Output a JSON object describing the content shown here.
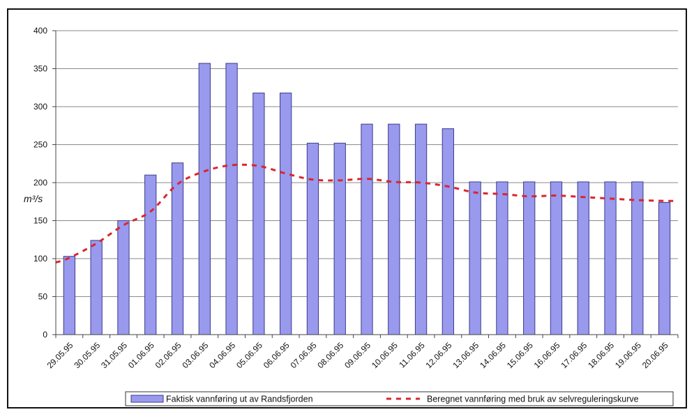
{
  "chart_data": {
    "type": "bar",
    "categories": [
      "29.05.95",
      "30.05.95",
      "31.05.95",
      "01.06.95",
      "02.06.95",
      "03.06.95",
      "04.06.95",
      "05.06.95",
      "06.06.95",
      "07.06.95",
      "08.06.95",
      "09.06.95",
      "10.06.95",
      "11.06.95",
      "12.06.95",
      "13.06.95",
      "14.06.95",
      "15.06.95",
      "16.06.95",
      "17.06.95",
      "18.06.95",
      "19.06.95",
      "20.06.95"
    ],
    "series": [
      {
        "name": "Faktisk vannføring ut av Randsfjorden",
        "type": "bar",
        "color": "#9999ee",
        "values": [
          103,
          124,
          150,
          210,
          226,
          357,
          357,
          318,
          318,
          252,
          252,
          277,
          277,
          277,
          271,
          201,
          201,
          201,
          201,
          201,
          201,
          201,
          174
        ]
      },
      {
        "name": "Beregnet vannføring med bruk av selvreguleringskurve",
        "type": "line",
        "style": "dashed",
        "color": "#d9262e",
        "values": [
          101,
          120,
          144,
          162,
          198,
          215,
          223,
          222,
          212,
          204,
          203,
          205,
          201,
          200,
          195,
          187,
          185,
          182,
          183,
          181,
          179,
          177,
          176
        ]
      }
    ],
    "title": "",
    "xlabel": "",
    "ylabel": "m³/s",
    "ylim": [
      0,
      400
    ],
    "yticks": [
      0,
      50,
      100,
      150,
      200,
      250,
      300,
      350,
      400
    ],
    "grid": true,
    "legend": "bottom"
  }
}
